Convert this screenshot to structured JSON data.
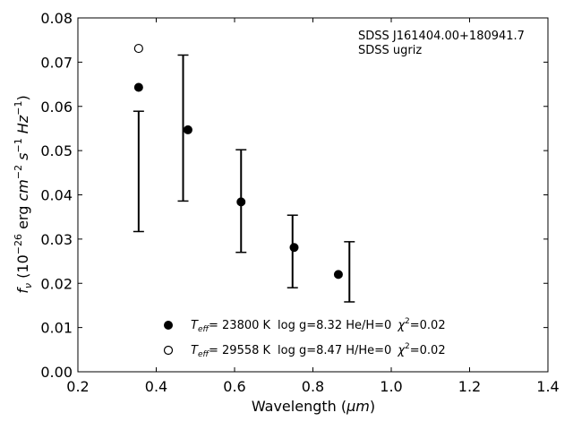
{
  "chart_data": {
    "type": "scatter",
    "title": "",
    "xlabel_main": "Wavelength (",
    "xlabel_unit": "μm",
    "xlabel_close": ")",
    "ylabel_parts": {
      "f": "f",
      "nu": "ν",
      "open": " (10",
      "exp26": "−26",
      "erg": " erg ",
      "cm": "cm",
      "exp2": "−2",
      "s": " s",
      "exp1": "−1",
      "hz": " Hz",
      "exp1b": "−1",
      "close": ")"
    },
    "xlim": [
      0.2,
      1.4
    ],
    "ylim": [
      0.0,
      0.08
    ],
    "xticks": [
      "0.2",
      "0.4",
      "0.6",
      "0.8",
      "1.0",
      "1.2",
      "1.4"
    ],
    "yticks": [
      "0.00",
      "0.01",
      "0.02",
      "0.03",
      "0.04",
      "0.05",
      "0.06",
      "0.07",
      "0.08"
    ],
    "grid": false,
    "annotation": [
      "SDSS J161404.00+180941.7",
      "SDSS ugriz"
    ],
    "observed": {
      "x": [
        0.3551,
        0.4686,
        0.6166,
        0.748,
        0.8932
      ],
      "y": [
        0.0453,
        0.0551,
        0.0386,
        0.0272,
        0.0226
      ],
      "yerr_low": [
        0.0136,
        0.0165,
        0.0116,
        0.0082,
        0.0068
      ],
      "yerr_high": [
        0.0136,
        0.0165,
        0.0116,
        0.0082,
        0.0068
      ]
    },
    "series": [
      {
        "marker": "filled-circle",
        "teff_value": "= 23800 K",
        "params": "log g=8.32  He/H=0",
        "chi2": "=0.02",
        "x": [
          0.3551,
          0.481,
          0.6166,
          0.752,
          0.865
        ],
        "y": [
          0.0643,
          0.0547,
          0.0384,
          0.0281,
          0.022
        ]
      },
      {
        "marker": "open-circle",
        "teff_value": "= 29558 K",
        "params": "log g=8.47  H/He=0",
        "chi2": "=0.02",
        "x": [
          0.3551
        ],
        "y": [
          0.0731
        ]
      }
    ],
    "legend_placement": "lower-center",
    "legend_labels": {
      "T": "T",
      "eff": "eff",
      "chi": "χ",
      "two": "2"
    }
  }
}
